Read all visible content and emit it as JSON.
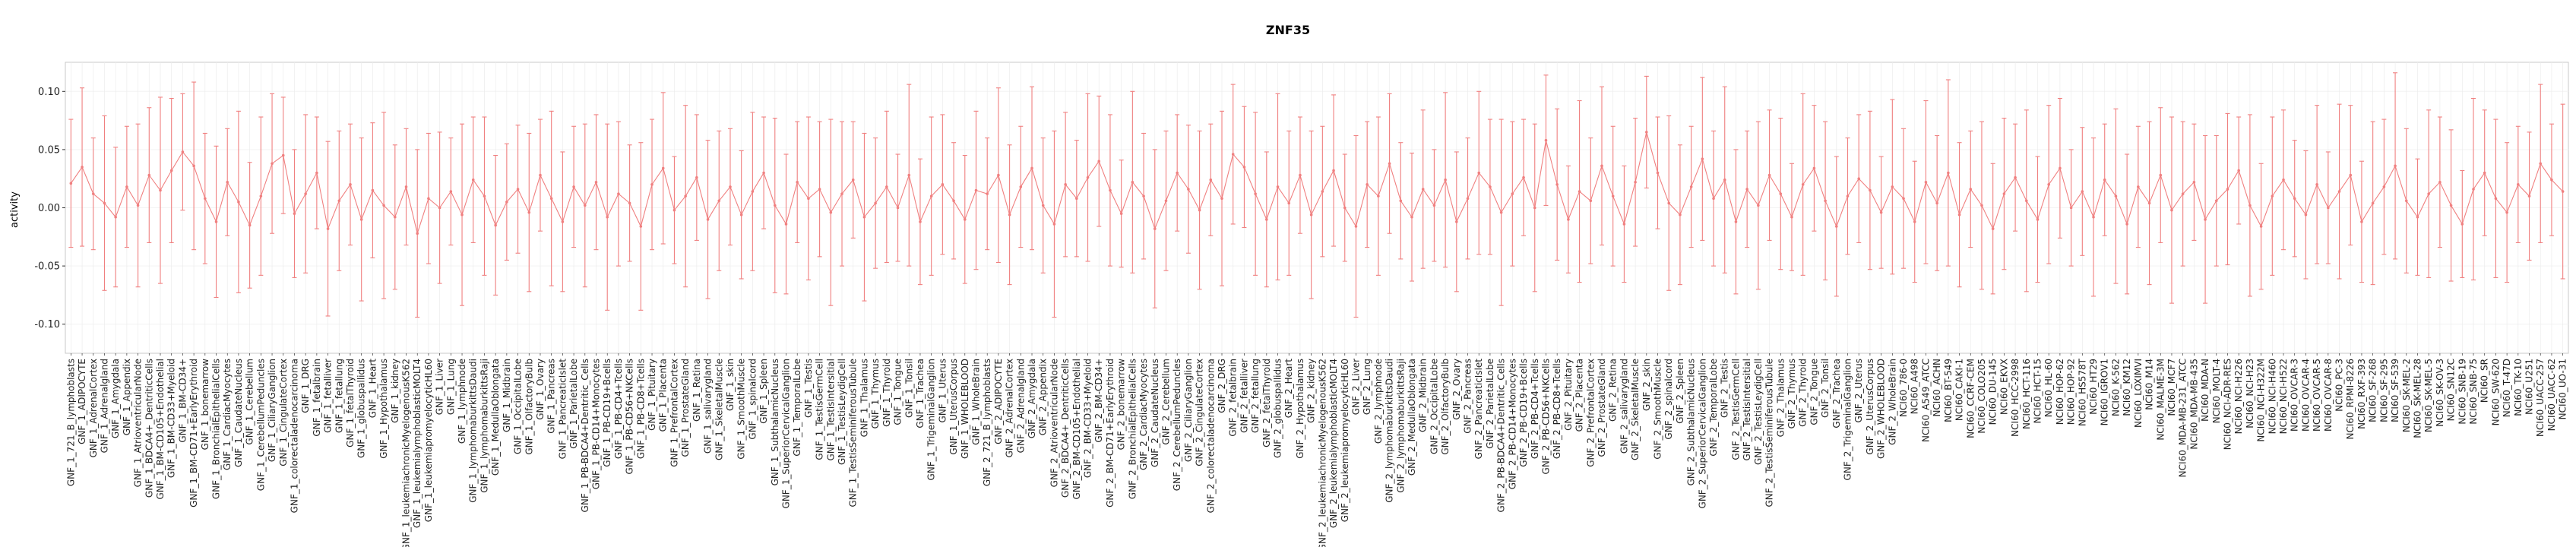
{
  "chart_data": {
    "type": "line",
    "subtype": "errorbar-points",
    "title": "ZNF35",
    "ylabel": "activity",
    "xlabel": "",
    "ylim": [
      -0.125,
      0.125
    ],
    "grid": "vertical-per-category",
    "legend": "none",
    "series_color": "#f08080",
    "colors": {
      "grid": "#ececec",
      "hgrid": "#f3f3f3",
      "axis": "#c8c8c8",
      "tick": "#333333",
      "text": "#222222"
    },
    "yticks": [
      {
        "value": 0.1,
        "label": "0.10"
      },
      {
        "value": 0.05,
        "label": "0.05"
      },
      {
        "value": 0.0,
        "label": "0.00"
      },
      {
        "value": -0.05,
        "label": "-0.05"
      },
      {
        "value": -0.1,
        "label": "-0.10"
      }
    ],
    "categories": [
      "GNF_1_721_B_lymphoblasts",
      "GNF_1_ADIPOCYTE",
      "GNF_1_AdrenalCortex",
      "GNF_1_Adrenalgland",
      "GNF_1_Amygdala",
      "GNF_1_Appendix",
      "GNF_1_AtrioventricularNode",
      "GNF_1_BDCA4+_DentriticCells",
      "GNF_1_BM-CD105+Endothelial",
      "GNF_1_BM-CD33+Myeloid",
      "GNF_1_BM-CD34+",
      "GNF_1_BM-CD71+EarlyErythroid",
      "GNF_1_bonemarrow",
      "GNF_1_BronchialEpithelialCells",
      "GNF_1_CardiacMyocytes",
      "GNF_1_CaudateNucleus",
      "GNF_1_Cerebellum",
      "GNF_1_CerebellumPeduncles",
      "GNF_1_CiliaryGanglion",
      "GNF_1_CingulateCortex",
      "GNF_1_colorectaladenocarcinoma",
      "GNF_1_DRG",
      "GNF_1_fetalbrain",
      "GNF_1_fetalliver",
      "GNF_1_fetallung",
      "GNF_1_fetalThyroid",
      "GNF_1_globuspallidus",
      "GNF_1_Heart",
      "GNF_1_Hypothalamus",
      "GNF_1_kidney",
      "GNF_1_leukemiachronicMyelogenousK562",
      "GNF_1_leukemialymphoblasticMOLT4",
      "GNF_1_leukemiapromyelocyticHL60",
      "GNF_1_Liver",
      "GNF_1_Lung",
      "GNF_1_lymphnode",
      "GNF_1_lymphomaburkittsDaudi",
      "GNF_1_lymphomaburkittsRaji",
      "GNF_1_MedullaOblongata",
      "GNF_1_Midbrain",
      "GNF_1_OccipitalLobe",
      "GNF_1_OlfactoryBulb",
      "GNF_1_Ovary",
      "GNF_1_Pancreas",
      "GNF_1_PancreaticIslet",
      "GNF_1_ParietalLobe",
      "GNF_1_PB-BDCA4+Dentritic_Cells",
      "GNF_1_PB-CD14+Monocytes",
      "GNF_1_PB-CD19+Bcells",
      "GNF_1_PB-CD4+Tcells",
      "GNF_1_PB-CD56+NKCells",
      "GNF_1_PB-CD8+Tcells",
      "GNF_1_Pituitary",
      "GNF_1_Placenta",
      "GNF_1_PrefrontalCortex",
      "GNF_1_ProstateGland",
      "GNF_1_Retina",
      "GNF_1_salivarygland",
      "GNF_1_SkeletalMuscle",
      "GNF_1_skin",
      "GNF_1_SmoothMuscle",
      "GNF_1_spinalcord",
      "GNF_1_Spleen",
      "GNF_1_SubthalamicNucleus",
      "GNF_1_SuperiorCervicalGanglion",
      "GNF_1_TemporalLobe",
      "GNF_1_Testis",
      "GNF_1_TestisGermCell",
      "GNF_1_TestisIntersitial",
      "GNF_1_TestisLeydigCell",
      "GNF_1_TestisSeminiferousTubule",
      "GNF_1_Thalamus",
      "GNF_1_Thymus",
      "GNF_1_Thyroid",
      "GNF_1_Tongue",
      "GNF_1_Tonsil",
      "GNF_1_Trachea",
      "GNF_1_TrigeminalGanglion",
      "GNF_1_Uterus",
      "GNF_1_UterusCorpus",
      "GNF_1_WHOLEBLOOD",
      "GNF_1_WholeBrain",
      "GNF_2_721_B_lymphoblasts",
      "GNF_2_ADIPOCYTE",
      "GNF_2_AdrenalCortex",
      "GNF_2_Adrenalgland",
      "GNF_2_Amygdala",
      "GNF_2_Appendix",
      "GNF_2_AtrioventricularNode",
      "GNF_2_BDCA4+_DentriticCells",
      "GNF_2_BM-CD105+Endothelial",
      "GNF_2_BM-CD33+Myeloid",
      "GNF_2_BM-CD34+",
      "GNF_2_BM-CD71+EarlyErythroid",
      "GNF_2_bonemarrow",
      "GNF_2_BronchialEpithelialCells",
      "GNF_2_CardiacMyocytes",
      "GNF_2_CaudateNucleus",
      "GNF_2_Cerebellum",
      "GNF_2_CerebellumPeduncles",
      "GNF_2_CiliaryGanglion",
      "GNF_2_CingulateCortex",
      "GNF_2_colorectaladenocarcinoma",
      "GNF_2_DRG",
      "GNF_2_fetalbrain",
      "GNF_2_fetalliver",
      "GNF_2_fetallung",
      "GNF_2_fetalThyroid",
      "GNF_2_globuspallidus",
      "GNF_2_Heart",
      "GNF_2_Hypothalamus",
      "GNF_2_kidney",
      "GNF_2_leukemiachronicMyelogenousK562",
      "GNF_2_leukemialymphoblasticMOLT4",
      "GNF_2_leukemiapromyelocyticHL60",
      "GNF_2_Liver",
      "GNF_2_Lung",
      "GNF_2_lymphnode",
      "GNF_2_lymphomaburkittsDaudi",
      "GNF_2_lymphomaburkittsRaji",
      "GNF_2_MedullaOblongata",
      "GNF_2_Midbrain",
      "GNF_2_OccipitalLobe",
      "GNF_2_OlfactoryBulb",
      "GNF_2_Ovary",
      "GNF_2_Pancreas",
      "GNF_2_PancreaticIslet",
      "GNF_2_ParietalLobe",
      "GNF_2_PB-BDCA4+Dentritic_Cells",
      "GNF_2_PB-CD14+Monocytes",
      "GNF_2_PB-CD19+Bcells",
      "GNF_2_PB-CD4+Tcells",
      "GNF_2_PB-CD56+NKCells",
      "GNF_2_PB-CD8+Tcells",
      "GNF_2_Pituitary",
      "GNF_2_Placenta",
      "GNF_2_PrefrontalCortex",
      "GNF_2_ProstateGland",
      "GNF_2_Retina",
      "GNF_2_salivarygland",
      "GNF_2_SkeletalMuscle",
      "GNF_2_skin",
      "GNF_2_SmoothMuscle",
      "GNF_2_spinalcord",
      "GNF_2_Spleen",
      "GNF_2_SubthalamicNucleus",
      "GNF_2_SuperiorCervicalGanglion",
      "GNF_2_TemporalLobe",
      "GNF_2_Testis",
      "GNF_2_TestisGermCell",
      "GNF_2_TestisIntersitial",
      "GNF_2_TestisLeydigCell",
      "GNF_2_TestisSeminiferousTubule",
      "GNF_2_Thalamus",
      "GNF_2_Thymus",
      "GNF_2_Thyroid",
      "GNF_2_Tongue",
      "GNF_2_Tonsil",
      "GNF_2_Trachea",
      "GNF_2_TrigeminalGanglion",
      "GNF_2_Uterus",
      "GNF_2_UterusCorpus",
      "GNF_2_WHOLEBLOOD",
      "GNF_2_WholeBrain",
      "NCI60_786-0",
      "NCI60_A498",
      "NCI60_A549_ATCC",
      "NCI60_ACHN",
      "NCI60_BT-549",
      "NCI60_CAKI-1",
      "NCI60_CCRF-CEM",
      "NCI60_COLO205",
      "NCI60_DU-145",
      "NCI60_EKVX",
      "NCI60_HCC-2998",
      "NCI60_HCT-116",
      "NCI60_HCT-15",
      "NCI60_HL-60",
      "NCI60_HOP-62",
      "NCI60_HOP-92",
      "NCI60_HS578T",
      "NCI60_HT29",
      "NCI60_IGROV1",
      "NCI60_K-562",
      "NCI60_KM12",
      "NCI60_LOXIMVI",
      "NCI60_M14",
      "NCI60_MALME-3M",
      "NCI60_MCF7",
      "NCI60_MDA-MB-231_ATCC",
      "NCI60_MDA-MB-435",
      "NCI60_MDA-N",
      "NCI60_MOLT-4",
      "NCI60_NCI-ADR-RES",
      "NCI60_NCI-H226",
      "NCI60_NCI-H23",
      "NCI60_NCI-H322M",
      "NCI60_NCI-H460",
      "NCI60_NCI-H522",
      "NCI60_OVCAR-3",
      "NCI60_OVCAR-4",
      "NCI60_OVCAR-5",
      "NCI60_OVCAR-8",
      "NCI60_PC-3",
      "NCI60_RPMI-8226",
      "NCI60_RXF-393",
      "NCI60_SF-268",
      "NCI60_SF-295",
      "NCI60_SF-539",
      "NCI60_SK-MEL-2",
      "NCI60_SK-MEL-28",
      "NCI60_SK-MEL-5",
      "NCI60_SK-OV-3",
      "NCI60_SN12C",
      "NCI60_SNB-19",
      "NCI60_SNB-75",
      "NCI60_SR",
      "NCI60_SW-620",
      "NCI60_T-47D",
      "NCI60_TK-10",
      "NCI60_U251",
      "NCI60_UACC-257",
      "NCI60_UACC-62",
      "NCI60_UO-31"
    ],
    "means": [
      0.021,
      0.035,
      0.012,
      0.004,
      -0.008,
      0.018,
      0.002,
      0.028,
      0.015,
      0.032,
      0.048,
      0.036,
      0.008,
      -0.012,
      0.022,
      0.005,
      -0.015,
      0.01,
      0.038,
      0.045,
      -0.005,
      0.012,
      0.03,
      -0.018,
      0.006,
      0.02,
      -0.01,
      0.015,
      0.002,
      -0.008,
      0.018,
      -0.022,
      0.008,
      0.0,
      0.014,
      -0.006,
      0.024,
      0.01,
      -0.015,
      0.005,
      0.016,
      -0.004,
      0.028,
      0.008,
      -0.012,
      0.018,
      0.002,
      0.022,
      -0.008,
      0.012,
      0.004,
      -0.016,
      0.02,
      0.034,
      -0.002,
      0.01,
      0.026,
      -0.01,
      0.006,
      0.018,
      -0.006,
      0.014,
      0.03,
      0.002,
      -0.014,
      0.022,
      0.008,
      0.016,
      -0.004,
      0.012,
      0.024,
      -0.008,
      0.004,
      0.018,
      0.0,
      0.028,
      -0.012,
      0.01,
      0.02,
      0.006,
      -0.01,
      0.015,
      0.012,
      0.028,
      -0.006,
      0.018,
      0.034,
      0.002,
      -0.014,
      0.02,
      0.008,
      0.026,
      0.04,
      0.015,
      -0.005,
      0.022,
      0.01,
      -0.018,
      0.006,
      0.03,
      0.016,
      -0.002,
      0.024,
      0.008,
      0.046,
      0.035,
      0.012,
      -0.01,
      0.018,
      0.004,
      0.028,
      -0.006,
      0.014,
      0.032,
      0.0,
      -0.016,
      0.02,
      0.01,
      0.038,
      0.006,
      -0.008,
      0.016,
      0.002,
      0.024,
      -0.012,
      0.008,
      0.03,
      0.018,
      -0.004,
      0.012,
      0.026,
      0.0,
      0.058,
      0.02,
      -0.01,
      0.014,
      0.006,
      0.036,
      0.01,
      -0.014,
      0.022,
      0.065,
      0.03,
      0.004,
      -0.006,
      0.018,
      0.042,
      0.008,
      0.024,
      -0.012,
      0.016,
      0.002,
      0.028,
      0.012,
      -0.008,
      0.02,
      0.034,
      0.006,
      -0.016,
      0.01,
      0.025,
      0.015,
      -0.004,
      0.018,
      0.008,
      -0.012,
      0.022,
      0.004,
      0.03,
      -0.006,
      0.016,
      0.002,
      -0.018,
      0.012,
      0.026,
      0.006,
      -0.01,
      0.02,
      0.034,
      0.0,
      0.014,
      -0.008,
      0.024,
      0.01,
      -0.014,
      0.018,
      0.004,
      0.028,
      -0.002,
      0.012,
      0.022,
      -0.01,
      0.006,
      0.016,
      0.032,
      0.002,
      -0.016,
      0.01,
      0.024,
      0.008,
      -0.006,
      0.02,
      0.0,
      0.014,
      0.028,
      -0.012,
      0.004,
      0.018,
      0.036,
      0.006,
      -0.008,
      0.012,
      0.022,
      0.002,
      -0.014,
      0.016,
      0.03,
      0.008,
      -0.004,
      0.02,
      0.01,
      0.038,
      0.024,
      0.014
    ],
    "errors": [
      0.055,
      0.068,
      0.048,
      0.075,
      0.06,
      0.052,
      0.07,
      0.058,
      0.08,
      0.062,
      0.05,
      0.072,
      0.056,
      0.065,
      0.046,
      0.078,
      0.054,
      0.068,
      0.06,
      0.05,
      0.055,
      0.068,
      0.048,
      0.075,
      0.06,
      0.052,
      0.07,
      0.058,
      0.08,
      0.062,
      0.05,
      0.072,
      0.056,
      0.065,
      0.046,
      0.078,
      0.054,
      0.068,
      0.06,
      0.05,
      0.055,
      0.068,
      0.048,
      0.075,
      0.06,
      0.052,
      0.07,
      0.058,
      0.08,
      0.062,
      0.05,
      0.072,
      0.056,
      0.065,
      0.046,
      0.078,
      0.054,
      0.068,
      0.06,
      0.05,
      0.055,
      0.068,
      0.048,
      0.075,
      0.06,
      0.052,
      0.07,
      0.058,
      0.08,
      0.062,
      0.05,
      0.072,
      0.056,
      0.065,
      0.046,
      0.078,
      0.054,
      0.068,
      0.06,
      0.05,
      0.055,
      0.068,
      0.048,
      0.075,
      0.06,
      0.052,
      0.07,
      0.058,
      0.08,
      0.062,
      0.05,
      0.072,
      0.056,
      0.065,
      0.046,
      0.078,
      0.054,
      0.068,
      0.06,
      0.05,
      0.055,
      0.068,
      0.048,
      0.075,
      0.06,
      0.052,
      0.07,
      0.058,
      0.08,
      0.062,
      0.05,
      0.072,
      0.056,
      0.065,
      0.046,
      0.078,
      0.054,
      0.068,
      0.06,
      0.05,
      0.055,
      0.068,
      0.048,
      0.075,
      0.06,
      0.052,
      0.07,
      0.058,
      0.08,
      0.062,
      0.05,
      0.072,
      0.056,
      0.065,
      0.046,
      0.078,
      0.054,
      0.068,
      0.06,
      0.05,
      0.055,
      0.048,
      0.048,
      0.075,
      0.06,
      0.052,
      0.07,
      0.058,
      0.08,
      0.062,
      0.05,
      0.072,
      0.056,
      0.065,
      0.046,
      0.078,
      0.054,
      0.068,
      0.06,
      0.05,
      0.055,
      0.068,
      0.048,
      0.075,
      0.06,
      0.052,
      0.07,
      0.058,
      0.08,
      0.062,
      0.05,
      0.072,
      0.056,
      0.065,
      0.046,
      0.078,
      0.054,
      0.068,
      0.06,
      0.05,
      0.055,
      0.068,
      0.048,
      0.075,
      0.06,
      0.052,
      0.07,
      0.058,
      0.08,
      0.062,
      0.05,
      0.072,
      0.056,
      0.065,
      0.046,
      0.078,
      0.054,
      0.068,
      0.06,
      0.05,
      0.055,
      0.068,
      0.048,
      0.075,
      0.06,
      0.052,
      0.07,
      0.058,
      0.08,
      0.062,
      0.05,
      0.072,
      0.056,
      0.065,
      0.046,
      0.078,
      0.054,
      0.068,
      0.06,
      0.05,
      0.055,
      0.068,
      0.048,
      0.075
    ]
  }
}
